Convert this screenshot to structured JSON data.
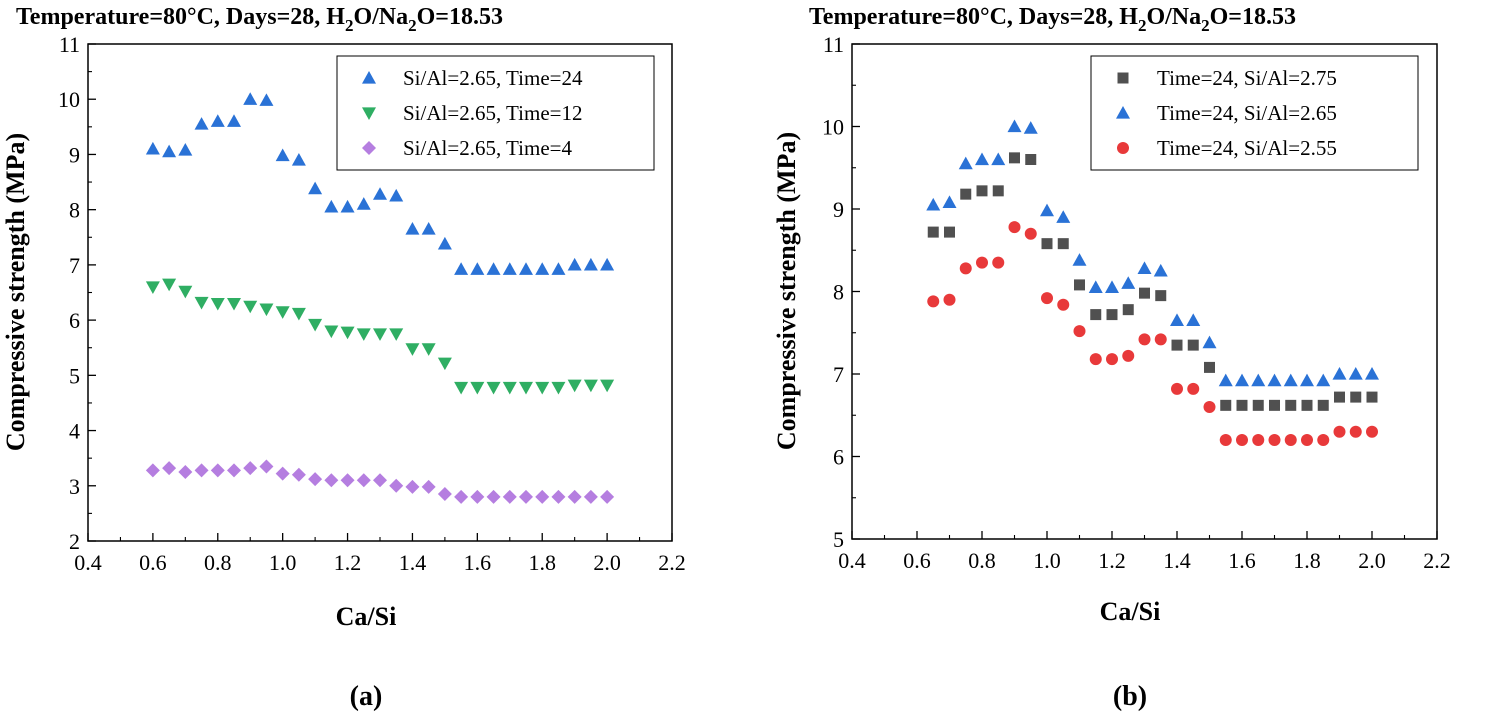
{
  "chart_data": [
    {
      "type": "scatter",
      "panel_label": "(a)",
      "title": {
        "prefix": "Temperature=80°C, Days=28, H",
        "sub1": "2",
        "mid": "O/Na",
        "sub2": "2",
        "suffix": "O=18.53"
      },
      "xlabel": "Ca/Si",
      "ylabel": "Compressive strength (MPa)",
      "xlim": [
        0.4,
        2.2
      ],
      "ylim": [
        2,
        11
      ],
      "xticks": [
        "0.4",
        "0.6",
        "0.8",
        "1.0",
        "1.2",
        "1.4",
        "1.6",
        "1.8",
        "2.0",
        "2.2"
      ],
      "yticks": [
        "2",
        "3",
        "4",
        "5",
        "6",
        "7",
        "8",
        "9",
        "10",
        "11"
      ],
      "legend": "top-right",
      "series": [
        {
          "name": "Si/Al=2.65, Time=24",
          "marker": "triangle-up",
          "color": "#2a72d6",
          "x": [
            0.6,
            0.65,
            0.7,
            0.75,
            0.8,
            0.85,
            0.9,
            0.95,
            1.0,
            1.05,
            1.1,
            1.15,
            1.2,
            1.25,
            1.3,
            1.35,
            1.4,
            1.45,
            1.5,
            1.55,
            1.6,
            1.65,
            1.7,
            1.75,
            1.8,
            1.85,
            1.9,
            1.95,
            2.0
          ],
          "y": [
            9.1,
            9.05,
            9.08,
            9.55,
            9.6,
            9.6,
            10.0,
            9.98,
            8.98,
            8.9,
            8.38,
            8.05,
            8.05,
            8.1,
            8.28,
            8.25,
            7.65,
            7.65,
            7.38,
            6.92,
            6.92,
            6.92,
            6.92,
            6.92,
            6.92,
            6.92,
            7.0,
            7.0,
            7.0
          ]
        },
        {
          "name": "Si/Al=2.65, Time=12",
          "marker": "triangle-down",
          "color": "#2fae63",
          "x": [
            0.6,
            0.65,
            0.7,
            0.75,
            0.8,
            0.85,
            0.9,
            0.95,
            1.0,
            1.05,
            1.1,
            1.15,
            1.2,
            1.25,
            1.3,
            1.35,
            1.4,
            1.45,
            1.5,
            1.55,
            1.6,
            1.65,
            1.7,
            1.75,
            1.8,
            1.85,
            1.9,
            1.95,
            2.0
          ],
          "y": [
            6.6,
            6.65,
            6.52,
            6.32,
            6.3,
            6.3,
            6.25,
            6.2,
            6.15,
            6.12,
            5.92,
            5.8,
            5.78,
            5.75,
            5.75,
            5.75,
            5.48,
            5.48,
            5.22,
            4.78,
            4.78,
            4.78,
            4.78,
            4.78,
            4.78,
            4.78,
            4.82,
            4.82,
            4.82
          ]
        },
        {
          "name": "Si/Al=2.65, Time=4",
          "marker": "diamond",
          "color": "#b57ee0",
          "x": [
            0.6,
            0.65,
            0.7,
            0.75,
            0.8,
            0.85,
            0.9,
            0.95,
            1.0,
            1.05,
            1.1,
            1.15,
            1.2,
            1.25,
            1.3,
            1.35,
            1.4,
            1.45,
            1.5,
            1.55,
            1.6,
            1.65,
            1.7,
            1.75,
            1.8,
            1.85,
            1.9,
            1.95,
            2.0
          ],
          "y": [
            3.28,
            3.32,
            3.25,
            3.28,
            3.28,
            3.28,
            3.32,
            3.35,
            3.22,
            3.2,
            3.12,
            3.1,
            3.1,
            3.1,
            3.1,
            3.0,
            2.98,
            2.98,
            2.85,
            2.8,
            2.8,
            2.8,
            2.8,
            2.8,
            2.8,
            2.8,
            2.8,
            2.8,
            2.8
          ]
        }
      ]
    },
    {
      "type": "scatter",
      "panel_label": "(b)",
      "title": {
        "prefix": "Temperature=80°C, Days=28, H",
        "sub1": "2",
        "mid": "O/Na",
        "sub2": "2",
        "suffix": "O=18.53"
      },
      "xlabel": "Ca/Si",
      "ylabel": "Compressive strength (MPa)",
      "xlim": [
        0.4,
        2.2
      ],
      "ylim": [
        5,
        11
      ],
      "xticks": [
        "0.4",
        "0.6",
        "0.8",
        "1.0",
        "1.2",
        "1.4",
        "1.6",
        "1.8",
        "2.0",
        "2.2"
      ],
      "yticks": [
        "5",
        "6",
        "7",
        "8",
        "9",
        "10",
        "11"
      ],
      "legend": "top-right",
      "series": [
        {
          "name": "Time=24, Si/Al=2.75",
          "marker": "square",
          "color": "#505050",
          "x": [
            0.65,
            0.7,
            0.75,
            0.8,
            0.85,
            0.9,
            0.95,
            1.0,
            1.05,
            1.1,
            1.15,
            1.2,
            1.25,
            1.3,
            1.35,
            1.4,
            1.45,
            1.5,
            1.55,
            1.6,
            1.65,
            1.7,
            1.75,
            1.8,
            1.85,
            1.9,
            1.95,
            2.0
          ],
          "y": [
            8.72,
            8.72,
            9.18,
            9.22,
            9.22,
            9.62,
            9.6,
            8.58,
            8.58,
            8.08,
            7.72,
            7.72,
            7.78,
            7.98,
            7.95,
            7.35,
            7.35,
            7.08,
            6.62,
            6.62,
            6.62,
            6.62,
            6.62,
            6.62,
            6.62,
            6.72,
            6.72,
            6.72
          ]
        },
        {
          "name": "Time=24, Si/Al=2.65",
          "marker": "triangle-up",
          "color": "#2a72d6",
          "x": [
            0.65,
            0.7,
            0.75,
            0.8,
            0.85,
            0.9,
            0.95,
            1.0,
            1.05,
            1.1,
            1.15,
            1.2,
            1.25,
            1.3,
            1.35,
            1.4,
            1.45,
            1.5,
            1.55,
            1.6,
            1.65,
            1.7,
            1.75,
            1.8,
            1.85,
            1.9,
            1.95,
            2.0
          ],
          "y": [
            9.05,
            9.08,
            9.55,
            9.6,
            9.6,
            10.0,
            9.98,
            8.98,
            8.9,
            8.38,
            8.05,
            8.05,
            8.1,
            8.28,
            8.25,
            7.65,
            7.65,
            7.38,
            6.92,
            6.92,
            6.92,
            6.92,
            6.92,
            6.92,
            6.92,
            7.0,
            7.0,
            7.0
          ]
        },
        {
          "name": "Time=24, Si/Al=2.55",
          "marker": "circle",
          "color": "#e8393a",
          "x": [
            0.65,
            0.7,
            0.75,
            0.8,
            0.85,
            0.9,
            0.95,
            1.0,
            1.05,
            1.1,
            1.15,
            1.2,
            1.25,
            1.3,
            1.35,
            1.4,
            1.45,
            1.5,
            1.55,
            1.6,
            1.65,
            1.7,
            1.75,
            1.8,
            1.85,
            1.9,
            1.95,
            2.0
          ],
          "y": [
            7.88,
            7.9,
            8.28,
            8.35,
            8.35,
            8.78,
            8.7,
            7.92,
            7.84,
            7.52,
            7.18,
            7.18,
            7.22,
            7.42,
            7.42,
            6.82,
            6.82,
            6.6,
            6.2,
            6.2,
            6.2,
            6.2,
            6.2,
            6.2,
            6.2,
            6.3,
            6.3,
            6.3
          ]
        }
      ]
    }
  ]
}
